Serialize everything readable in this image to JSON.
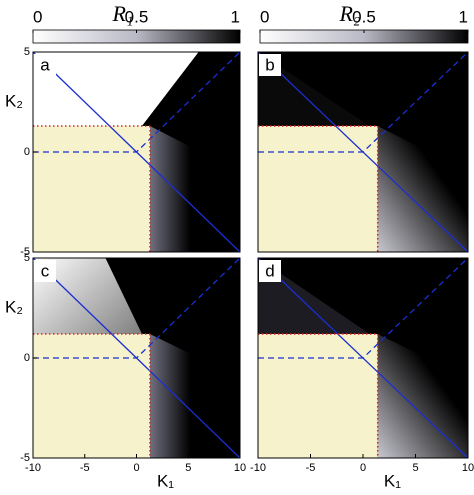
{
  "colorbars": [
    {
      "label": "R₁",
      "lim": [
        0,
        1
      ],
      "ticks": [
        0,
        0.5,
        1
      ]
    },
    {
      "label": "R₂",
      "lim": [
        0,
        1
      ],
      "ticks": [
        0,
        0.5,
        1
      ]
    }
  ],
  "chart_data": [
    {
      "type": "heatmap",
      "label": "a",
      "xlim": [
        -10,
        10
      ],
      "ylim": [
        -5,
        5
      ],
      "yticks": [
        -5,
        0,
        5
      ],
      "ylabel": "K₂",
      "boundary_k1": 1.3,
      "boundary_k2": 1.3
    },
    {
      "type": "heatmap",
      "label": "b",
      "xlim": [
        -10,
        10
      ],
      "ylim": [
        -5,
        5
      ],
      "boundary_k1": 1.4,
      "boundary_k2": 1.3
    },
    {
      "type": "heatmap",
      "label": "c",
      "xlim": [
        -10,
        10
      ],
      "ylim": [
        -5,
        5
      ],
      "yticks": [
        -5,
        0,
        5
      ],
      "ylabel": "K₂",
      "xticks": [
        -10,
        -5,
        0,
        5,
        10
      ],
      "xlabel": "K₁",
      "boundary_k1": 1.3,
      "boundary_k2": 1.2
    },
    {
      "type": "heatmap",
      "label": "d",
      "xlim": [
        -10,
        10
      ],
      "ylim": [
        -5,
        5
      ],
      "xticks": [
        -10,
        -5,
        0,
        5,
        10
      ],
      "xlabel": "K₁",
      "boundary_k1": 1.4,
      "boundary_k2": 1.2
    }
  ]
}
